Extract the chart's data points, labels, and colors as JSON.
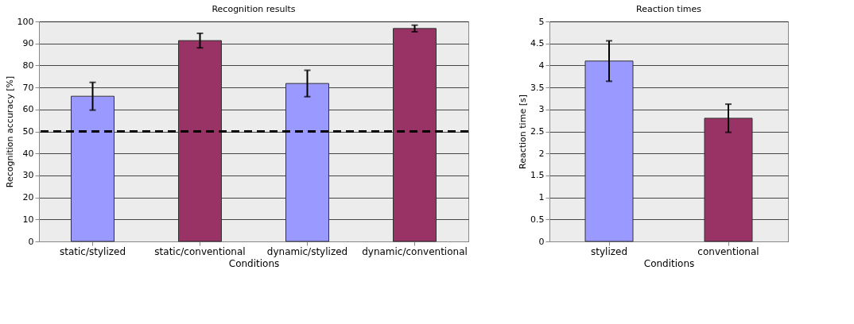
{
  "chart_data": [
    {
      "type": "bar",
      "title": "Recognition results",
      "xlabel": "Conditions",
      "ylabel": "Recognition accuracy [%]",
      "categories": [
        "static/stylized",
        "static/conventional",
        "dynamic/stylized",
        "dynamic/conventional"
      ],
      "values": [
        66,
        91.3,
        71.8,
        96.8
      ],
      "colors": [
        "#9999ff",
        "#993366",
        "#9999ff",
        "#993366"
      ],
      "errors": [
        6.3,
        3.3,
        6,
        1.5
      ],
      "ylim": [
        0,
        100
      ],
      "yticks": [
        0,
        10,
        20,
        30,
        40,
        50,
        60,
        70,
        80,
        90,
        100
      ],
      "grid": "y",
      "ref_lines": [
        {
          "axis": "y",
          "value": 50,
          "color": "#000000",
          "line_style": "dashed"
        }
      ]
    },
    {
      "type": "bar",
      "title": "Reaction times",
      "xlabel": "Conditions",
      "ylabel": "Reaction time [s]",
      "categories": [
        "stylized",
        "conventional"
      ],
      "values": [
        4.1,
        2.8
      ],
      "colors": [
        "#9999ff",
        "#993366"
      ],
      "errors": [
        0.46,
        0.32
      ],
      "ylim": [
        0,
        5
      ],
      "yticks": [
        0,
        0.5,
        1,
        1.5,
        2,
        2.5,
        3,
        3.5,
        4,
        4.5,
        5
      ],
      "grid": "y"
    }
  ]
}
